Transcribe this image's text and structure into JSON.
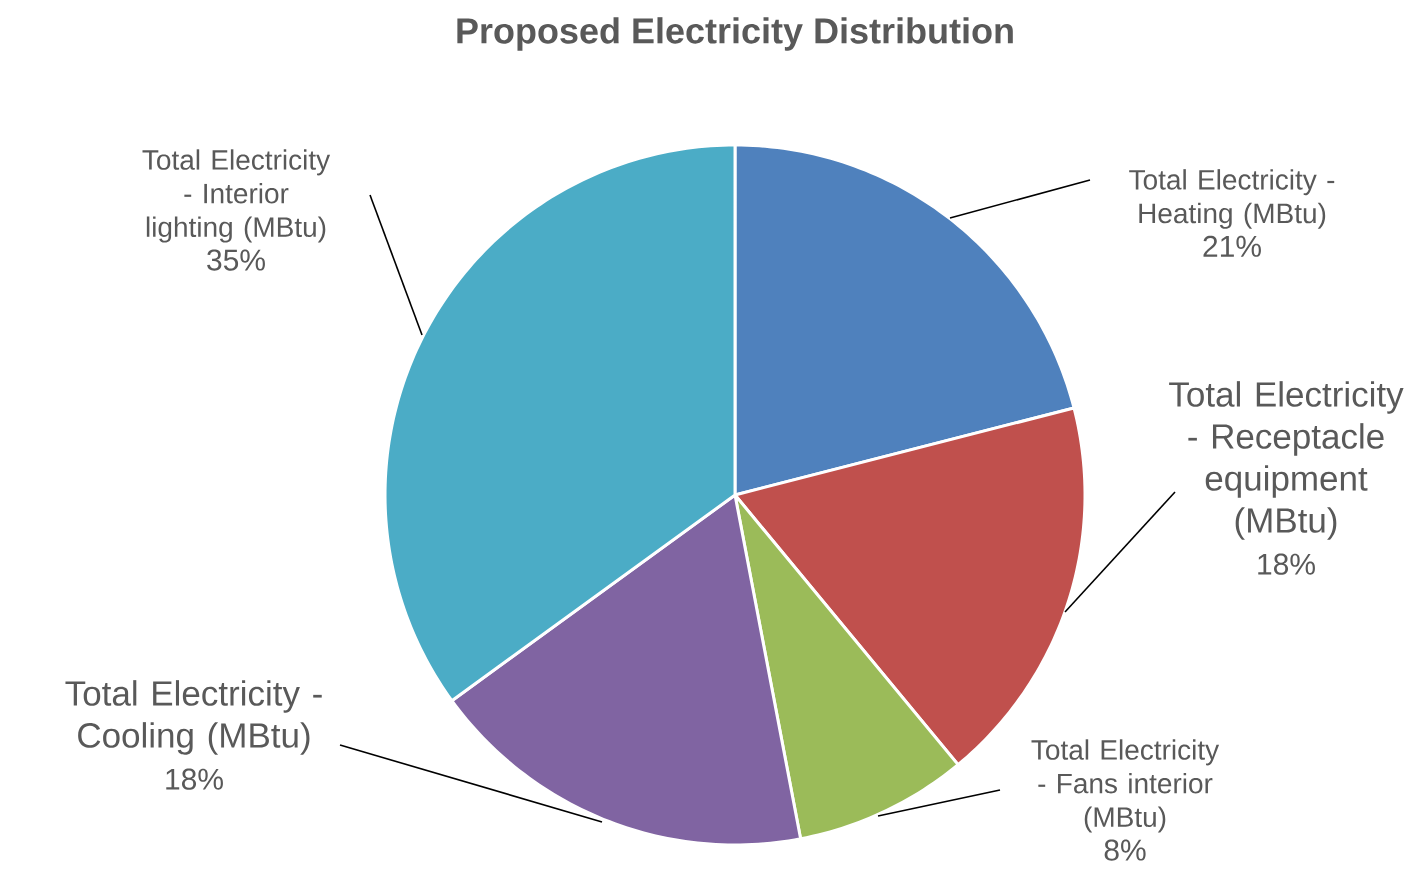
{
  "chart_data": {
    "type": "pie",
    "title": "Proposed Electricity Distribution",
    "categories": [
      "Total Electricity - Heating (MBtu)",
      "Total Electricity - Receptacle equipment (MBtu)",
      "Total Electricity - Fans interior (MBtu)",
      "Total Electricity - Cooling (MBtu)",
      "Total Electricity - Interior lighting (MBtu)"
    ],
    "values": [
      21,
      18,
      8,
      18,
      35
    ],
    "value_labels": [
      "21%",
      "18%",
      "8%",
      "18%",
      "35%"
    ],
    "colors": [
      "#4f81bd",
      "#c0504d",
      "#9bbb59",
      "#8064a2",
      "#4bacc6"
    ]
  }
}
